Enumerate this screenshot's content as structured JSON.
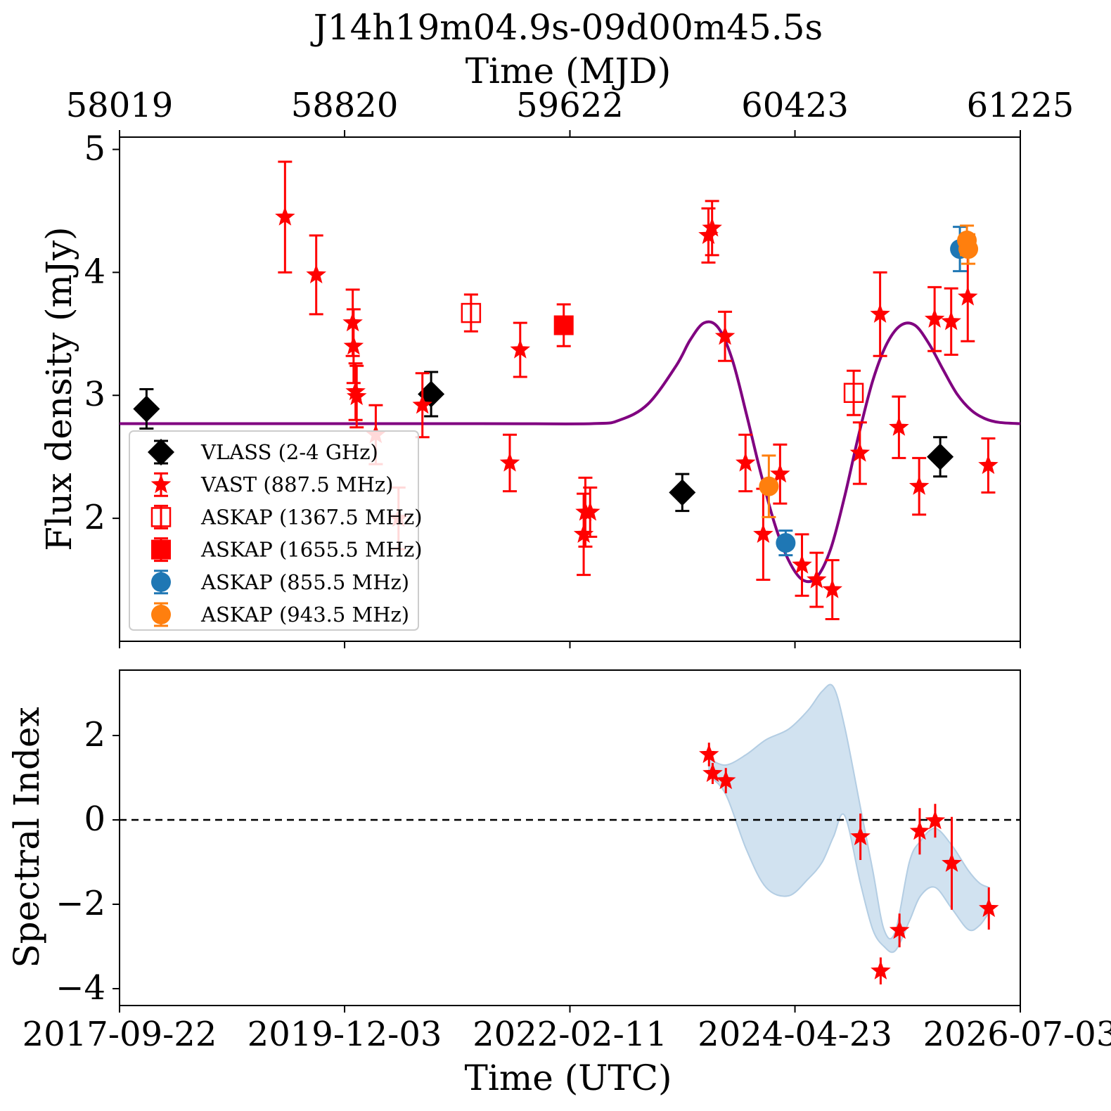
{
  "colors": {
    "vlass": "#000000",
    "vast": "#ff0000",
    "askap_1367": "#ff0000",
    "askap_1655": "#ff0000",
    "askap_855": "#1f77b4",
    "askap_943": "#ff7f0e",
    "model_curve": "#800080",
    "spectral_band": "#c6dbec"
  },
  "chart_data": [
    {
      "type": "scatter",
      "title": "J14h19m04.9s-09d00m45.5s",
      "top_xlabel": "Time (MJD)",
      "top_ticks": [
        "58019",
        "58820",
        "59622",
        "60423",
        "61225"
      ],
      "top_tick_values": [
        58019,
        58820,
        59622,
        60423,
        61225
      ],
      "ylabel": "Flux density (mJy)",
      "xlim": [
        58019,
        61225
      ],
      "ylim": [
        1.0,
        5.1
      ],
      "yticks": [
        "2",
        "3",
        "4",
        "5"
      ],
      "ytick_values": [
        2,
        3,
        4,
        5
      ],
      "legend_position": "lower-left",
      "legend": [
        {
          "label": "VLASS (2-4 GHz)",
          "marker": "diamond",
          "color": "#000000"
        },
        {
          "label": "VAST (887.5 MHz)",
          "marker": "star",
          "color": "#ff0000"
        },
        {
          "label": "ASKAP (1367.5 MHz)",
          "marker": "square-open",
          "color": "#ff0000"
        },
        {
          "label": "ASKAP (1655.5 MHz)",
          "marker": "square",
          "color": "#ff0000"
        },
        {
          "label": "ASKAP (855.5 MHz)",
          "marker": "circle",
          "color": "#1f77b4"
        },
        {
          "label": "ASKAP (943.5 MHz)",
          "marker": "circle",
          "color": "#ff7f0e"
        }
      ],
      "series": [
        {
          "name": "VLASS (2-4 GHz)",
          "marker": "diamond",
          "color": "#000000",
          "points": [
            {
              "x": 58115,
              "y": 2.89,
              "err": 0.16
            },
            {
              "x": 59128,
              "y": 3.01,
              "err": 0.18
            },
            {
              "x": 60022,
              "y": 2.21,
              "err": 0.15
            },
            {
              "x": 60940,
              "y": 2.5,
              "err": 0.16
            }
          ]
        },
        {
          "name": "VAST (887.5 MHz)",
          "marker": "star",
          "color": "#ff0000",
          "points": [
            {
              "x": 58608,
              "y": 4.45,
              "err": 0.45
            },
            {
              "x": 58719,
              "y": 3.98,
              "err": 0.32
            },
            {
              "x": 58849,
              "y": 3.59,
              "err": 0.27
            },
            {
              "x": 58852,
              "y": 3.4,
              "err": 0.3
            },
            {
              "x": 58859,
              "y": 3.03,
              "err": 0.23
            },
            {
              "x": 58863,
              "y": 2.99,
              "err": 0.25
            },
            {
              "x": 58931,
              "y": 2.68,
              "err": 0.24
            },
            {
              "x": 59012,
              "y": 2.0,
              "err": 0.25
            },
            {
              "x": 59097,
              "y": 2.92,
              "err": 0.26
            },
            {
              "x": 59408,
              "y": 2.45,
              "err": 0.23
            },
            {
              "x": 59445,
              "y": 3.37,
              "err": 0.22
            },
            {
              "x": 59671,
              "y": 1.87,
              "err": 0.33
            },
            {
              "x": 59677,
              "y": 2.05,
              "err": 0.28
            },
            {
              "x": 59694,
              "y": 2.05,
              "err": 0.2
            },
            {
              "x": 60115,
              "y": 4.3,
              "err": 0.22
            },
            {
              "x": 60128,
              "y": 4.36,
              "err": 0.22
            },
            {
              "x": 60174,
              "y": 3.48,
              "err": 0.2
            },
            {
              "x": 60247,
              "y": 2.45,
              "err": 0.23
            },
            {
              "x": 60310,
              "y": 1.87,
              "err": 0.37
            },
            {
              "x": 60370,
              "y": 2.36,
              "err": 0.24
            },
            {
              "x": 60448,
              "y": 1.62,
              "err": 0.25
            },
            {
              "x": 60500,
              "y": 1.5,
              "err": 0.22
            },
            {
              "x": 60556,
              "y": 1.42,
              "err": 0.24
            },
            {
              "x": 60654,
              "y": 2.53,
              "err": 0.25
            },
            {
              "x": 60726,
              "y": 3.66,
              "err": 0.34
            },
            {
              "x": 60793,
              "y": 2.74,
              "err": 0.25
            },
            {
              "x": 60865,
              "y": 2.26,
              "err": 0.23
            },
            {
              "x": 60920,
              "y": 3.62,
              "err": 0.26
            },
            {
              "x": 60979,
              "y": 3.6,
              "err": 0.27
            },
            {
              "x": 61038,
              "y": 3.8,
              "err": 0.36
            },
            {
              "x": 61111,
              "y": 2.43,
              "err": 0.22
            }
          ]
        },
        {
          "name": "ASKAP (1367.5 MHz)",
          "marker": "square-open",
          "color": "#ff0000",
          "points": [
            {
              "x": 59270,
              "y": 3.67,
              "err": 0.15
            },
            {
              "x": 60632,
              "y": 3.02,
              "err": 0.18
            }
          ]
        },
        {
          "name": "ASKAP (1655.5 MHz)",
          "marker": "square",
          "color": "#ff0000",
          "points": [
            {
              "x": 59600,
              "y": 3.57,
              "err": 0.17
            }
          ]
        },
        {
          "name": "ASKAP (855.5 MHz)",
          "marker": "circle",
          "color": "#1f77b4",
          "points": [
            {
              "x": 60390,
              "y": 1.8,
              "err": 0.1
            },
            {
              "x": 61010,
              "y": 4.19,
              "err": 0.18
            }
          ]
        },
        {
          "name": "ASKAP (943.5 MHz)",
          "marker": "circle",
          "color": "#ff7f0e",
          "points": [
            {
              "x": 60330,
              "y": 2.26,
              "err": 0.25
            },
            {
              "x": 61035,
              "y": 4.26,
              "err": 0.12
            },
            {
              "x": 61040,
              "y": 4.19,
              "err": 0.12
            }
          ]
        }
      ],
      "model_curve": {
        "color": "#800080",
        "x": [
          58019,
          59300,
          59700,
          59800,
          59900,
          60000,
          60050,
          60100,
          60150,
          60200,
          60250,
          60300,
          60350,
          60400,
          60450,
          60500,
          60550,
          60600,
          60650,
          60700,
          60750,
          60800,
          60850,
          60900,
          60950,
          61000,
          61050,
          61100,
          61150,
          61225
        ],
        "y": [
          2.77,
          2.77,
          2.77,
          2.8,
          2.93,
          3.24,
          3.45,
          3.59,
          3.55,
          3.29,
          2.85,
          2.38,
          1.96,
          1.66,
          1.5,
          1.52,
          1.75,
          2.18,
          2.68,
          3.12,
          3.42,
          3.57,
          3.57,
          3.42,
          3.21,
          3.01,
          2.88,
          2.81,
          2.78,
          2.77
        ]
      }
    },
    {
      "type": "scatter",
      "ylabel": "Spectral Index",
      "xlabel": "Time (UTC)",
      "xticks": [
        "2017-09-22",
        "2019-12-03",
        "2022-02-11",
        "2024-04-23",
        "2026-07-03"
      ],
      "xtick_values": [
        58019,
        58820,
        59622,
        60423,
        61225
      ],
      "xlim": [
        58019,
        61225
      ],
      "ylim": [
        -4.4,
        3.55
      ],
      "yticks": [
        "−4",
        "−2",
        "0",
        "2"
      ],
      "ytick_values": [
        -4,
        -2,
        0,
        2
      ],
      "reference_line": {
        "y": 0,
        "style": "dashed",
        "color": "#000000"
      },
      "series": [
        {
          "name": "VAST (887.5 MHz)",
          "marker": "star",
          "color": "#ff0000",
          "points": [
            {
              "x": 60117,
              "y": 1.55,
              "err": 0.28
            },
            {
              "x": 60130,
              "y": 1.1,
              "err": 0.25
            },
            {
              "x": 60177,
              "y": 0.93,
              "err": 0.3
            },
            {
              "x": 60656,
              "y": -0.4,
              "err": 0.55
            },
            {
              "x": 60728,
              "y": -3.58,
              "err": 0.32
            },
            {
              "x": 60795,
              "y": -2.62,
              "err": 0.4
            },
            {
              "x": 60867,
              "y": -0.27,
              "err": 0.55
            },
            {
              "x": 60922,
              "y": -0.02,
              "err": 0.4
            },
            {
              "x": 60981,
              "y": -1.03,
              "err": 1.1
            },
            {
              "x": 61113,
              "y": -2.1,
              "err": 0.5
            }
          ]
        }
      ],
      "band": {
        "color": "#c6dbec",
        "x": [
          60117,
          60177,
          60250,
          60320,
          60400,
          60470,
          60520,
          60560,
          60600,
          60656,
          60700,
          60740,
          60780,
          60830,
          60870,
          60922,
          60981,
          61040,
          61080,
          61113
        ],
        "upper": [
          1.45,
          1.3,
          1.55,
          1.9,
          2.15,
          2.6,
          3.05,
          3.15,
          2.2,
          0.3,
          -1.2,
          -2.6,
          -2.65,
          -1.0,
          -0.5,
          -0.2,
          -0.6,
          -1.2,
          -1.5,
          -1.6
        ],
        "lower": [
          1.05,
          0.6,
          -0.7,
          -1.6,
          -1.8,
          -1.4,
          -1.0,
          -0.4,
          0.1,
          -1.5,
          -2.6,
          -3.0,
          -3.1,
          -2.4,
          -1.8,
          -1.6,
          -2.1,
          -2.6,
          -2.5,
          -2.2
        ]
      }
    }
  ]
}
